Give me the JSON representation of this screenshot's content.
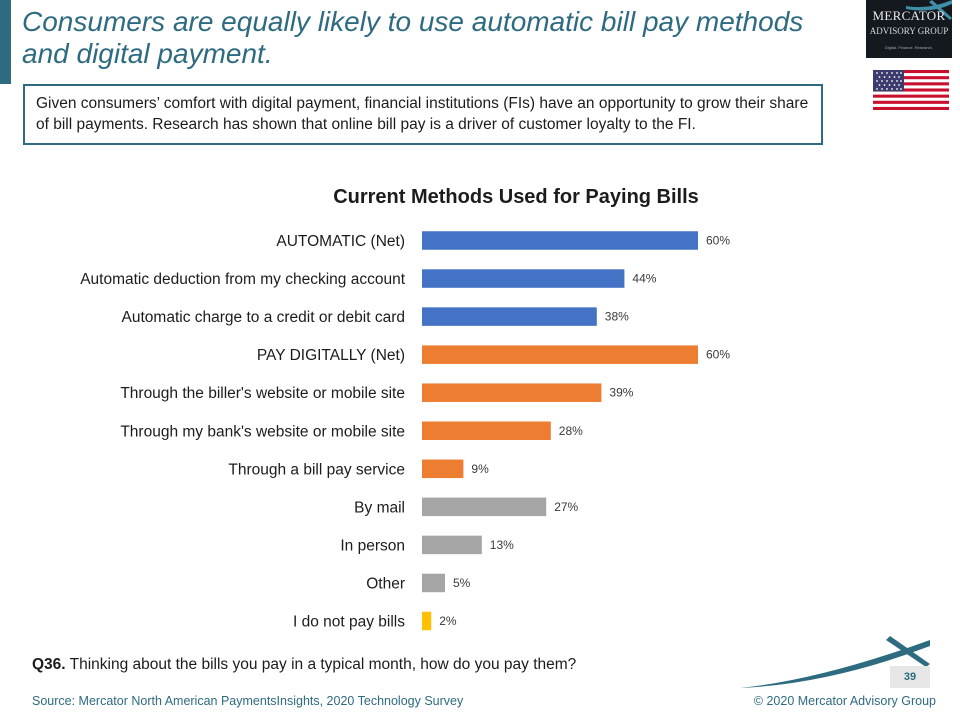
{
  "title_lines": [
    "Consumers are equally likely to use automatic bill pay methods",
    "and digital payment."
  ],
  "intro_text": "Given consumers’ comfort with digital payment, financial institutions (FIs) have an opportunity to grow their share of bill payments. Research has shown that online bill pay is a driver of customer loyalty to the FI.",
  "logo": {
    "name": "Mercator",
    "sub": "Advisory Group",
    "tagline": "Digital. Finance. Research."
  },
  "chart_data": {
    "type": "bar",
    "orientation": "horizontal",
    "title": "Current Methods Used for Paying Bills",
    "xlabel": "",
    "ylabel": "",
    "xlim": [
      0,
      62
    ],
    "grid": false,
    "categories": [
      "AUTOMATIC (Net)",
      "Automatic deduction from my checking account",
      "Automatic charge to a credit or debit card",
      "PAY DIGITALLY (Net)",
      "Through the biller's website or mobile site",
      "Through my bank's website or mobile site",
      "Through a bill pay service",
      "By mail",
      "In person",
      "Other",
      "I do not pay bills"
    ],
    "values": [
      60,
      44,
      38,
      60,
      39,
      28,
      9,
      27,
      13,
      5,
      2
    ],
    "value_labels": [
      "60%",
      "44%",
      "38%",
      "60%",
      "39%",
      "28%",
      "9%",
      "27%",
      "13%",
      "5%",
      "2%"
    ],
    "groups": [
      "automatic",
      "automatic",
      "automatic",
      "digital",
      "digital",
      "digital",
      "digital",
      "other",
      "other",
      "other",
      "none"
    ],
    "group_colors": {
      "automatic": "#4472c4",
      "digital": "#ed7d31",
      "other": "#a5a5a5",
      "none": "#ffc000"
    }
  },
  "question": {
    "label": "Q36.",
    "text": " Thinking about the bills you pay in a typical month, how do you pay them?"
  },
  "page_number": "39",
  "source": "Source: Mercator North American PaymentsInsights, 2020 Technology Survey",
  "copyright": "© 2020  Mercator Advisory Group",
  "colors": {
    "accent": "#2e6b80"
  }
}
